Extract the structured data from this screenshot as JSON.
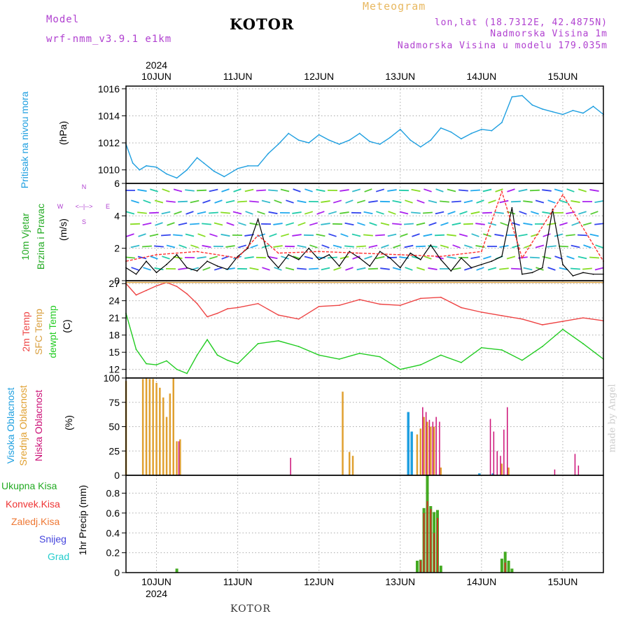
{
  "header": {
    "model_label": "Model",
    "model_name": "wrf-nmm_v3.9.1  e1km",
    "city": "KOTOR",
    "title": "Meteogram",
    "coords": "lon,lat (18.7312E, 42.4875N)",
    "elevation": "Nadmorska Visina 1m",
    "model_elevation": "Nadmorska Visina u modelu 179.035m",
    "top_year": "2024",
    "bottom_year": "2024",
    "footer_city": "KOTOR",
    "credit": "made by Angel"
  },
  "panels": {
    "pressure": {
      "labels": [
        "Pritisak na nivou mora",
        "(hPa)"
      ]
    },
    "wind": {
      "labels": [
        "10m Vjetar",
        "Brzina i Pravac",
        "(m/s)"
      ],
      "compass": [
        "N",
        "S",
        "W",
        "E",
        "<--|-->"
      ]
    },
    "temp": {
      "labels": [
        "2m Temp",
        "SFC Temp",
        "dewpt Temp",
        "(C)"
      ]
    },
    "cloud": {
      "labels": [
        "Visoka Oblacnost",
        "Srednja Oblacnost",
        "Niska Oblacnost",
        "(%)"
      ]
    },
    "precip": {
      "labels": [
        "Ukupna Kisa",
        "Konvek.Kisa",
        "Zaledj.Kisa",
        "Snijeg",
        "Grad",
        "1hr Precip (mm)"
      ]
    }
  },
  "colors": {
    "pressure": "#1f9fe0",
    "wind_speed": "#000000",
    "gust": "#ff3030",
    "temp2m": "#ee4444",
    "sfc": "#d9a040",
    "dewpt": "#22cc22",
    "high_cloud": "#1f9fe0",
    "mid_cloud": "#e0a030",
    "low_cloud": "#cc1177",
    "total_rain": "#44aa22",
    "conv_rain": "#cc3322",
    "frozen_rain": "#ee7733",
    "snow": "#4444dd",
    "hail": "#22cccc",
    "grid": "#aaaaaa"
  },
  "chart_data": [
    {
      "type": "line",
      "title": "Pritisak na nivou mora",
      "ylabel": "(hPa)",
      "x_start": "2024-06-09 15:00",
      "x_end": "2024-06-15 12:00",
      "x_ticks": [
        "10JUN",
        "11JUN",
        "12JUN",
        "13JUN",
        "14JUN",
        "15JUN"
      ],
      "ylim": [
        1009,
        1016.2
      ],
      "yticks": [
        1010,
        1012,
        1014,
        1016
      ],
      "series": [
        {
          "name": "Pritisak",
          "x": [
            "2024-06-09 15:00",
            "2024-06-09 17:00",
            "2024-06-09 19:00",
            "2024-06-09 21:00",
            "2024-06-10 00:00",
            "2024-06-10 03:00",
            "2024-06-10 06:00",
            "2024-06-10 09:00",
            "2024-06-10 12:00",
            "2024-06-10 14:00",
            "2024-06-10 17:00",
            "2024-06-10 20:00",
            "2024-06-11 00:00",
            "2024-06-11 03:00",
            "2024-06-11 06:00",
            "2024-06-11 09:00",
            "2024-06-11 12:00",
            "2024-06-11 15:00",
            "2024-06-11 18:00",
            "2024-06-11 21:00",
            "2024-06-12 00:00",
            "2024-06-12 03:00",
            "2024-06-12 06:00",
            "2024-06-12 09:00",
            "2024-06-12 12:00",
            "2024-06-12 15:00",
            "2024-06-12 18:00",
            "2024-06-12 21:00",
            "2024-06-13 00:00",
            "2024-06-13 03:00",
            "2024-06-13 06:00",
            "2024-06-13 09:00",
            "2024-06-13 12:00",
            "2024-06-13 15:00",
            "2024-06-13 18:00",
            "2024-06-13 21:00",
            "2024-06-14 00:00",
            "2024-06-14 03:00",
            "2024-06-14 06:00",
            "2024-06-14 09:00",
            "2024-06-14 12:00",
            "2024-06-14 15:00",
            "2024-06-14 18:00",
            "2024-06-14 21:00",
            "2024-06-15 00:00",
            "2024-06-15 03:00",
            "2024-06-15 06:00",
            "2024-06-15 09:00",
            "2024-06-15 12:00"
          ],
          "values": [
            1011.9,
            1010.5,
            1010.0,
            1010.3,
            1010.2,
            1009.7,
            1009.4,
            1010.0,
            1010.9,
            1010.5,
            1009.9,
            1009.5,
            1010.1,
            1010.3,
            1010.3,
            1011.2,
            1011.9,
            1012.7,
            1012.2,
            1012.0,
            1012.6,
            1012.2,
            1011.9,
            1012.2,
            1012.7,
            1012.1,
            1011.9,
            1012.4,
            1013.0,
            1012.2,
            1011.7,
            1012.2,
            1013.1,
            1012.8,
            1012.3,
            1012.7,
            1013.0,
            1012.9,
            1013.5,
            1015.4,
            1015.5,
            1014.8,
            1014.5,
            1014.3,
            1014.1,
            1014.4,
            1014.2,
            1014.7,
            1014.1
          ]
        }
      ]
    },
    {
      "type": "line",
      "title": "10m Vjetar Brzina i Pravac",
      "ylabel": "(m/s)",
      "ylim": [
        0,
        6
      ],
      "yticks": [
        0,
        2,
        4,
        6
      ],
      "series": [
        {
          "name": "wind speed",
          "x": [
            "2024-06-09 15:00",
            "2024-06-09 18:00",
            "2024-06-09 21:00",
            "2024-06-10 00:00",
            "2024-06-10 03:00",
            "2024-06-10 06:00",
            "2024-06-10 09:00",
            "2024-06-10 12:00",
            "2024-06-10 15:00",
            "2024-06-10 18:00",
            "2024-06-10 21:00",
            "2024-06-11 00:00",
            "2024-06-11 03:00",
            "2024-06-11 06:00",
            "2024-06-11 09:00",
            "2024-06-11 12:00",
            "2024-06-11 15:00",
            "2024-06-11 18:00",
            "2024-06-11 21:00",
            "2024-06-12 00:00",
            "2024-06-12 03:00",
            "2024-06-12 06:00",
            "2024-06-12 09:00",
            "2024-06-12 12:00",
            "2024-06-12 15:00",
            "2024-06-12 18:00",
            "2024-06-12 21:00",
            "2024-06-13 00:00",
            "2024-06-13 03:00",
            "2024-06-13 06:00",
            "2024-06-13 09:00",
            "2024-06-13 12:00",
            "2024-06-13 15:00",
            "2024-06-13 18:00",
            "2024-06-13 21:00",
            "2024-06-14 00:00",
            "2024-06-14 03:00",
            "2024-06-14 06:00",
            "2024-06-14 09:00",
            "2024-06-14 12:00",
            "2024-06-14 15:00",
            "2024-06-14 18:00",
            "2024-06-14 21:00",
            "2024-06-15 00:00",
            "2024-06-15 03:00",
            "2024-06-15 06:00",
            "2024-06-15 09:00",
            "2024-06-15 12:00"
          ],
          "values": [
            0.8,
            0.4,
            1.2,
            0.5,
            1.0,
            1.6,
            0.8,
            0.6,
            1.2,
            0.9,
            0.7,
            1.5,
            2.0,
            3.8,
            1.5,
            0.8,
            1.6,
            1.3,
            2.0,
            1.3,
            1.6,
            0.9,
            1.8,
            1.4,
            0.9,
            1.8,
            1.4,
            0.8,
            1.7,
            1.3,
            2.2,
            1.3,
            0.6,
            1.4,
            0.8,
            1.0,
            1.2,
            1.5,
            4.5,
            0.4,
            0.5,
            0.8,
            4.4,
            1.0,
            0.3,
            0.5,
            0.4,
            0.4
          ]
        },
        {
          "name": "gust",
          "x": [
            "2024-06-09 15:00",
            "2024-06-10 00:00",
            "2024-06-10 12:00",
            "2024-06-11 00:00",
            "2024-06-11 06:00",
            "2024-06-11 12:00",
            "2024-06-12 00:00",
            "2024-06-12 12:00",
            "2024-06-13 00:00",
            "2024-06-13 12:00",
            "2024-06-14 00:00",
            "2024-06-14 06:00",
            "2024-06-14 12:00",
            "2024-06-15 00:00",
            "2024-06-15 12:00"
          ],
          "values": [
            1.2,
            1.6,
            1.8,
            1.4,
            2.8,
            1.7,
            1.8,
            1.7,
            1.6,
            1.5,
            1.8,
            5.5,
            1.4,
            5.3,
            1.2
          ]
        }
      ]
    },
    {
      "type": "line",
      "title": "2m Temp / SFC Temp / dewpt Temp",
      "ylabel": "(C)",
      "ylim": [
        10.5,
        27.5
      ],
      "yticks": [
        12,
        15,
        18,
        21,
        24,
        27
      ],
      "series": [
        {
          "name": "2m Temp",
          "x": [
            "2024-06-09 15:00",
            "2024-06-09 18:00",
            "2024-06-09 21:00",
            "2024-06-10 00:00",
            "2024-06-10 03:00",
            "2024-06-10 06:00",
            "2024-06-10 09:00",
            "2024-06-10 12:00",
            "2024-06-10 15:00",
            "2024-06-10 18:00",
            "2024-06-10 21:00",
            "2024-06-11 00:00",
            "2024-06-11 06:00",
            "2024-06-11 12:00",
            "2024-06-11 18:00",
            "2024-06-12 00:00",
            "2024-06-12 06:00",
            "2024-06-12 12:00",
            "2024-06-12 18:00",
            "2024-06-13 00:00",
            "2024-06-13 06:00",
            "2024-06-13 12:00",
            "2024-06-13 18:00",
            "2024-06-14 00:00",
            "2024-06-14 06:00",
            "2024-06-14 12:00",
            "2024-06-14 18:00",
            "2024-06-15 00:00",
            "2024-06-15 06:00",
            "2024-06-15 12:00"
          ],
          "values": [
            27.0,
            25.0,
            25.8,
            26.6,
            27.2,
            26.5,
            25.2,
            23.5,
            21.2,
            21.8,
            22.6,
            22.8,
            23.5,
            21.5,
            20.8,
            23.0,
            23.2,
            24.2,
            23.4,
            23.2,
            24.4,
            24.6,
            22.8,
            22.0,
            21.4,
            20.8,
            19.8,
            20.4,
            21.0,
            20.5
          ]
        },
        {
          "name": "SFC Temp",
          "x": [
            "2024-06-09 15:00",
            "2024-06-15 12:00"
          ],
          "values": [
            27.2,
            27.2
          ]
        },
        {
          "name": "dewpt Temp",
          "x": [
            "2024-06-09 15:00",
            "2024-06-09 18:00",
            "2024-06-09 21:00",
            "2024-06-10 00:00",
            "2024-06-10 03:00",
            "2024-06-10 06:00",
            "2024-06-10 09:00",
            "2024-06-10 12:00",
            "2024-06-10 15:00",
            "2024-06-10 18:00",
            "2024-06-10 21:00",
            "2024-06-11 00:00",
            "2024-06-11 06:00",
            "2024-06-11 12:00",
            "2024-06-11 18:00",
            "2024-06-12 00:00",
            "2024-06-12 06:00",
            "2024-06-12 12:00",
            "2024-06-12 18:00",
            "2024-06-13 00:00",
            "2024-06-13 06:00",
            "2024-06-13 12:00",
            "2024-06-13 18:00",
            "2024-06-14 00:00",
            "2024-06-14 06:00",
            "2024-06-14 12:00",
            "2024-06-14 18:00",
            "2024-06-15 00:00",
            "2024-06-15 06:00",
            "2024-06-15 12:00"
          ],
          "values": [
            21.8,
            15.5,
            13.0,
            12.8,
            13.5,
            12.0,
            11.3,
            14.5,
            17.2,
            14.5,
            13.6,
            13.0,
            16.5,
            17.0,
            16.0,
            14.5,
            13.8,
            14.8,
            14.2,
            12.0,
            12.8,
            14.5,
            13.2,
            15.8,
            15.4,
            13.6,
            16.0,
            19.0,
            16.5,
            13.8
          ]
        }
      ]
    },
    {
      "type": "bar",
      "title": "Visoka / Srednja / Niska Oblacnost",
      "ylabel": "(%)",
      "ylim": [
        0,
        100
      ],
      "yticks": [
        0,
        25,
        50,
        75,
        100
      ],
      "series": [
        {
          "name": "Visoka Oblacnost",
          "x": [
            "2024-06-13 03:00",
            "2024-06-13 04:00",
            "2024-06-14 00:00",
            "2024-06-14 04:00"
          ],
          "values": [
            65,
            45,
            2,
            2
          ]
        },
        {
          "name": "Srednja Oblacnost",
          "x": [
            "2024-06-09 15:00",
            "2024-06-09 20:00",
            "2024-06-09 21:00",
            "2024-06-09 22:00",
            "2024-06-09 23:00",
            "2024-06-10 00:00",
            "2024-06-10 01:00",
            "2024-06-10 02:00",
            "2024-06-10 03:00",
            "2024-06-10 04:00",
            "2024-06-10 05:00",
            "2024-06-10 06:00",
            "2024-06-10 07:00",
            "2024-06-12 07:00",
            "2024-06-12 09:00",
            "2024-06-12 10:00",
            "2024-06-13 05:00",
            "2024-06-13 06:00",
            "2024-06-13 07:00",
            "2024-06-13 08:00",
            "2024-06-13 09:00",
            "2024-06-13 10:00",
            "2024-06-13 12:00",
            "2024-06-14 06:00",
            "2024-06-14 08:00"
          ],
          "values": [
            97,
            99,
            100,
            99,
            99,
            95,
            90,
            80,
            60,
            84,
            100,
            35,
            37,
            86,
            24,
            20,
            42,
            48,
            60,
            55,
            50,
            50,
            8,
            12,
            8
          ]
        },
        {
          "name": "Niska Oblacnost",
          "x": [
            "2024-06-10 06:00",
            "2024-06-11 15:00",
            "2024-06-13 06:00",
            "2024-06-13 07:00",
            "2024-06-13 08:00",
            "2024-06-13 09:00",
            "2024-06-13 10:00",
            "2024-06-13 11:00",
            "2024-06-14 02:00",
            "2024-06-14 03:00",
            "2024-06-14 04:00",
            "2024-06-14 05:00",
            "2024-06-14 06:00",
            "2024-06-14 07:00",
            "2024-06-14 21:00",
            "2024-06-15 03:00",
            "2024-06-15 04:00"
          ],
          "values": [
            35,
            18,
            70,
            65,
            57,
            55,
            60,
            55,
            58,
            45,
            25,
            20,
            47,
            70,
            6,
            22,
            10
          ]
        }
      ]
    },
    {
      "type": "bar",
      "title": "1hr Precip",
      "ylabel": "1hr Precip (mm)",
      "ylim": [
        0,
        0.98
      ],
      "yticks": [
        0,
        0.2,
        0.4,
        0.6,
        0.8
      ],
      "series": [
        {
          "name": "Ukupna Kisa",
          "x": [
            "2024-06-10 06:00",
            "2024-06-13 05:00",
            "2024-06-13 06:00",
            "2024-06-13 07:00",
            "2024-06-13 08:00",
            "2024-06-13 09:00",
            "2024-06-13 10:00",
            "2024-06-13 11:00",
            "2024-06-13 12:00",
            "2024-06-14 06:00",
            "2024-06-14 07:00",
            "2024-06-14 08:00",
            "2024-06-14 09:00"
          ],
          "values": [
            0.04,
            0.12,
            0.13,
            0.65,
            0.98,
            0.67,
            0.61,
            0.63,
            0.07,
            0.14,
            0.21,
            0.12,
            0.04
          ]
        },
        {
          "name": "Konvek.Kisa",
          "x": [
            "2024-06-13 06:00",
            "2024-06-13 07:00",
            "2024-06-13 08:00",
            "2024-06-13 09:00",
            "2024-06-13 10:00",
            "2024-06-13 11:00",
            "2024-06-14 07:00"
          ],
          "values": [
            0.12,
            0.6,
            0.72,
            0.64,
            0.4,
            0.55,
            0.1
          ]
        }
      ]
    }
  ]
}
